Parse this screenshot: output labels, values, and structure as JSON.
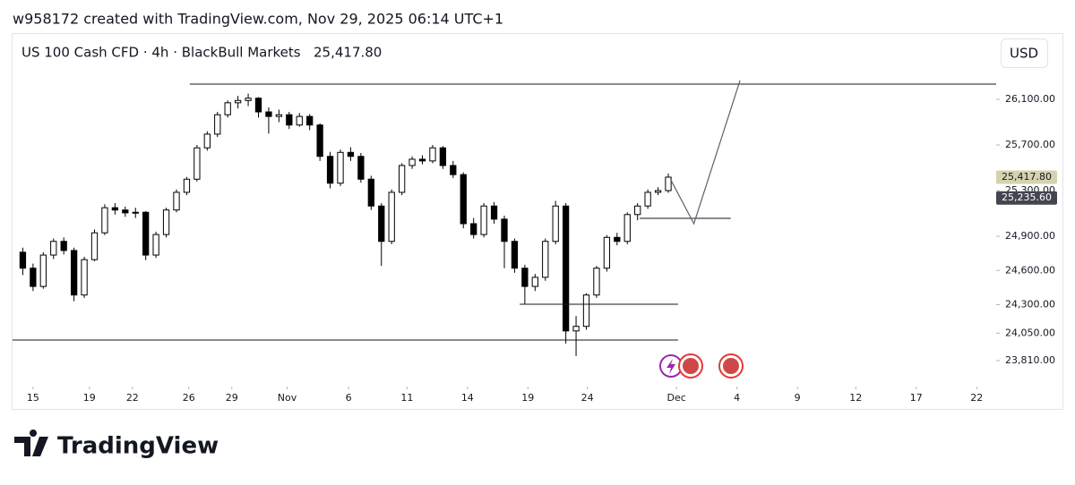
{
  "header": "w958172 created with TradingView.com, Nov 29, 2025 06:14 UTC+1",
  "footer": "TradingView",
  "currency_button": "USD",
  "chart_data": {
    "type": "candlestick",
    "title": "US 100 Cash CFD · 4h · BlackBull Markets",
    "last_price": "25,417.80",
    "up_color": "#ffffff",
    "down_color": "#000000",
    "wick_color": "#000000",
    "x": [
      1,
      2,
      3,
      4,
      5,
      6,
      7,
      8,
      9,
      10,
      11,
      12,
      13,
      14,
      15,
      16,
      17,
      18,
      19,
      20,
      21,
      22,
      23,
      24,
      25,
      26,
      27,
      28,
      29,
      30,
      31,
      32,
      33,
      34,
      35,
      36,
      37,
      38,
      39,
      40,
      41,
      42,
      43,
      44,
      45,
      46,
      47,
      48,
      49,
      50,
      51,
      52,
      53,
      54,
      55,
      56,
      57,
      58,
      59,
      60,
      61,
      62,
      63,
      64
    ],
    "series": [
      {
        "name": "US 100 Cash CFD",
        "values": [
          [
            24760,
            24800,
            24560,
            24620
          ],
          [
            24620,
            24660,
            24420,
            24460
          ],
          [
            24460,
            24760,
            24440,
            24735
          ],
          [
            24735,
            24880,
            24700,
            24855
          ],
          [
            24855,
            24890,
            24740,
            24775
          ],
          [
            24775,
            24800,
            24330,
            24385
          ],
          [
            24385,
            24720,
            24360,
            24695
          ],
          [
            24695,
            24960,
            24680,
            24930
          ],
          [
            24930,
            25180,
            24910,
            25150
          ],
          [
            25150,
            25190,
            25090,
            25130
          ],
          [
            25130,
            25160,
            25070,
            25105
          ],
          [
            25105,
            25150,
            25060,
            25110
          ],
          [
            25110,
            25120,
            24690,
            24735
          ],
          [
            24735,
            24940,
            24710,
            24915
          ],
          [
            24915,
            25150,
            24890,
            25130
          ],
          [
            25130,
            25310,
            25110,
            25285
          ],
          [
            25285,
            25420,
            25260,
            25400
          ],
          [
            25400,
            25700,
            25380,
            25675
          ],
          [
            25675,
            25820,
            25650,
            25795
          ],
          [
            25795,
            25990,
            25770,
            25965
          ],
          [
            25965,
            26090,
            25940,
            26070
          ],
          [
            26070,
            26130,
            26020,
            26090
          ],
          [
            26090,
            26150,
            26040,
            26110
          ],
          [
            26110,
            26120,
            25940,
            25990
          ],
          [
            25990,
            26030,
            25800,
            25950
          ],
          [
            25950,
            26010,
            25900,
            25965
          ],
          [
            25965,
            25990,
            25840,
            25875
          ],
          [
            25875,
            25980,
            25860,
            25950
          ],
          [
            25950,
            25970,
            25830,
            25875
          ],
          [
            25875,
            25890,
            25560,
            25600
          ],
          [
            25600,
            25640,
            25320,
            25365
          ],
          [
            25365,
            25660,
            25340,
            25635
          ],
          [
            25635,
            25680,
            25560,
            25600
          ],
          [
            25600,
            25630,
            25370,
            25400
          ],
          [
            25400,
            25430,
            25130,
            25165
          ],
          [
            25165,
            25190,
            24640,
            24855
          ],
          [
            24855,
            25310,
            24830,
            25285
          ],
          [
            25285,
            25540,
            25260,
            25520
          ],
          [
            25520,
            25600,
            25490,
            25575
          ],
          [
            25575,
            25610,
            25530,
            25560
          ],
          [
            25560,
            25700,
            25540,
            25675
          ],
          [
            25675,
            25690,
            25490,
            25520
          ],
          [
            25520,
            25560,
            25410,
            25440
          ],
          [
            25440,
            25460,
            24970,
            25010
          ],
          [
            25010,
            25060,
            24880,
            24915
          ],
          [
            24915,
            25190,
            24890,
            25165
          ],
          [
            25165,
            25200,
            25010,
            25050
          ],
          [
            25050,
            25080,
            24620,
            24855
          ],
          [
            24855,
            24880,
            24580,
            24620
          ],
          [
            24620,
            24650,
            24300,
            24460
          ],
          [
            24460,
            24570,
            24420,
            24540
          ],
          [
            24540,
            24880,
            24510,
            24855
          ],
          [
            24855,
            25210,
            24830,
            25165
          ],
          [
            25165,
            25190,
            23960,
            24070
          ],
          [
            24070,
            24200,
            23850,
            24110
          ],
          [
            24110,
            24400,
            24080,
            24385
          ],
          [
            24385,
            24640,
            24360,
            24620
          ],
          [
            24620,
            24910,
            24590,
            24890
          ],
          [
            24890,
            24930,
            24820,
            24855
          ],
          [
            24855,
            25110,
            24830,
            25090
          ],
          [
            25090,
            25190,
            25040,
            25165
          ],
          [
            25165,
            25310,
            25140,
            25285
          ],
          [
            25285,
            25330,
            25260,
            25300
          ],
          [
            25300,
            25450,
            25280,
            25417.8
          ]
        ]
      }
    ],
    "xlim": [
      0,
      96
    ],
    "xticks": [
      {
        "value": 2.0,
        "label": "15"
      },
      {
        "value": 7.5,
        "label": "19"
      },
      {
        "value": 11.7,
        "label": "22"
      },
      {
        "value": 17.2,
        "label": "26"
      },
      {
        "value": 21.4,
        "label": "29"
      },
      {
        "value": 26.8,
        "label": "Nov"
      },
      {
        "value": 32.8,
        "label": "6"
      },
      {
        "value": 38.5,
        "label": "11"
      },
      {
        "value": 44.4,
        "label": "14"
      },
      {
        "value": 50.3,
        "label": "19"
      },
      {
        "value": 56.1,
        "label": "24"
      },
      {
        "value": 64.8,
        "label": "Dec"
      },
      {
        "value": 70.7,
        "label": "4"
      },
      {
        "value": 76.6,
        "label": "9"
      },
      {
        "value": 82.3,
        "label": "12"
      },
      {
        "value": 88.2,
        "label": "17"
      },
      {
        "value": 94.1,
        "label": "22"
      }
    ],
    "ylim": [
      23598,
      26657
    ],
    "yticks": [
      {
        "value": 23810,
        "label": "23,810.00"
      },
      {
        "value": 24050,
        "label": "24,050.00"
      },
      {
        "value": 24300,
        "label": "24,300.00"
      },
      {
        "value": 24600,
        "label": "24,600.00"
      },
      {
        "value": 24900,
        "label": "24,900.00"
      },
      {
        "value": 25300,
        "label": "25,300.00"
      },
      {
        "value": 25700,
        "label": "25,700.00"
      },
      {
        "value": 26100,
        "label": "26,100.00"
      }
    ],
    "price_tags": [
      {
        "value": 25417.8,
        "label": "25,417.80",
        "color": "#d6d2b0",
        "text_color": "#131722"
      },
      {
        "value": 25235.6,
        "label": "25,235.60",
        "color": "#434651",
        "text_color": "#ffffff"
      }
    ],
    "levels": [
      {
        "y": 26233,
        "x": [
          17.3,
          96
        ]
      },
      {
        "y": 23990,
        "x": [
          0,
          64.95
        ]
      },
      {
        "y": 24304,
        "x": [
          49.5,
          64.95
        ]
      },
      {
        "y": 25057,
        "x": [
          61.2,
          70.1
        ]
      }
    ],
    "projection": {
      "x": [
        64.2,
        66.5,
        71.0
      ],
      "y": [
        25402,
        25010,
        26265
      ]
    }
  }
}
